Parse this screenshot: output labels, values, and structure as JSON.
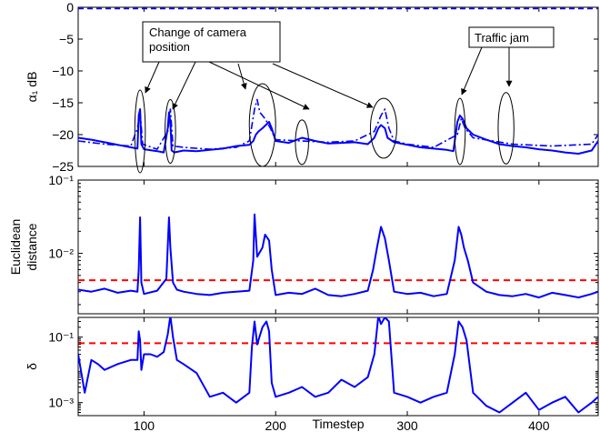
{
  "chart_data": [
    {
      "type": "line",
      "xlim": [
        50,
        445
      ],
      "ylim": [
        -25,
        0
      ],
      "yticks": [
        0,
        -5,
        -10,
        -15,
        -20,
        -25
      ],
      "ytick_labels": [
        "0",
        "−5",
        "−10",
        "−15",
        "−20",
        "−25"
      ],
      "ylabel": "α₁ dB",
      "series": [
        {
          "style": "solid",
          "color": "#0000ff",
          "x": [
            50,
            60,
            70,
            80,
            90,
            95,
            96,
            97,
            98,
            100,
            110,
            115,
            118,
            119,
            120,
            121,
            123,
            130,
            140,
            150,
            160,
            170,
            180,
            183,
            185,
            187,
            190,
            195,
            197,
            200,
            210,
            220,
            230,
            240,
            250,
            260,
            270,
            275,
            278,
            280,
            283,
            285,
            290,
            300,
            310,
            320,
            330,
            335,
            338,
            340,
            342,
            345,
            350,
            360,
            370,
            380,
            390,
            400,
            410,
            420,
            430,
            440,
            445
          ],
          "y": [
            -20.5,
            -20.8,
            -21.2,
            -21.6,
            -22.0,
            -22.2,
            -17.0,
            -16.0,
            -21.5,
            -22.3,
            -22.6,
            -22.8,
            -19.0,
            -16.5,
            -18.0,
            -22.5,
            -22.8,
            -22.5,
            -22.6,
            -22.4,
            -22.2,
            -21.8,
            -21.6,
            -21.0,
            -20.0,
            -19.5,
            -19.0,
            -18.0,
            -19.0,
            -21.0,
            -21.3,
            -20.5,
            -21.0,
            -21.4,
            -21.3,
            -21.2,
            -21.5,
            -20.5,
            -19.0,
            -18.5,
            -19.0,
            -20.5,
            -21.2,
            -21.6,
            -22.0,
            -22.2,
            -22.4,
            -22.6,
            -18.0,
            -17.0,
            -17.5,
            -19.0,
            -20.0,
            -20.8,
            -21.5,
            -21.8,
            -22.0,
            -22.3,
            -22.5,
            -22.8,
            -23.0,
            -22.5,
            -21.0
          ]
        },
        {
          "style": "dashdot",
          "color": "#0000ff",
          "x": [
            50,
            70,
            90,
            95,
            97,
            99,
            110,
            118,
            120,
            122,
            130,
            150,
            170,
            180,
            184,
            186,
            188,
            192,
            196,
            200,
            220,
            240,
            260,
            275,
            280,
            283,
            286,
            290,
            300,
            320,
            338,
            341,
            344,
            350,
            380,
            410,
            440,
            445
          ],
          "y": [
            -21.0,
            -21.5,
            -21.8,
            -19.0,
            -16.5,
            -21.5,
            -22.3,
            -19.5,
            -16.0,
            -21.8,
            -22.0,
            -22.3,
            -22.0,
            -21.0,
            -16.0,
            -14.5,
            -16.5,
            -17.5,
            -19.0,
            -20.8,
            -21.0,
            -21.2,
            -21.0,
            -19.5,
            -17.0,
            -16.0,
            -19.0,
            -21.0,
            -21.5,
            -22.0,
            -20.0,
            -17.5,
            -19.0,
            -20.5,
            -21.5,
            -21.8,
            -21.5,
            -20.0
          ]
        },
        {
          "style": "dashed",
          "color": "#0000ff",
          "x": [
            50,
            445
          ],
          "y": [
            -0.2,
            -0.2
          ]
        }
      ],
      "annotations": {
        "labels": [
          {
            "lines": [
              "Change of camera",
              "position"
            ]
          },
          {
            "lines": [
              "Traffic jam"
            ]
          }
        ],
        "ellipses": [
          {
            "cx": 97,
            "cy": -19.5,
            "rx": 4,
            "ry": 6.5
          },
          {
            "cx": 120,
            "cy": -19.5,
            "rx": 4,
            "ry": 5
          },
          {
            "cx": 190,
            "cy": -18.5,
            "rx": 10,
            "ry": 6.5
          },
          {
            "cx": 220,
            "cy": -21.2,
            "rx": 5,
            "ry": 3.5
          },
          {
            "cx": 282,
            "cy": -19.0,
            "rx": 10,
            "ry": 4.7
          },
          {
            "cx": 340,
            "cy": -19.5,
            "rx": 4,
            "ry": 5.2
          },
          {
            "cx": 375,
            "cy": -19.0,
            "rx": 6,
            "ry": 5.6
          }
        ]
      }
    },
    {
      "type": "line",
      "xlim": [
        50,
        445
      ],
      "yscale": "log",
      "ylim": [
        0.0015,
        0.1
      ],
      "yticks": [
        0.1,
        0.01
      ],
      "ytick_labels": [
        "10⁻¹",
        "10⁻²"
      ],
      "ylabel": [
        "Euclidean",
        "distance"
      ],
      "threshold": 0.0043,
      "series": [
        {
          "style": "solid",
          "color": "#0000ff",
          "x": [
            50,
            60,
            70,
            80,
            90,
            95,
            96,
            97,
            98,
            100,
            110,
            117,
            119,
            120,
            122,
            125,
            130,
            140,
            150,
            160,
            170,
            180,
            183,
            184,
            186,
            190,
            192,
            195,
            197,
            200,
            210,
            220,
            230,
            240,
            250,
            260,
            270,
            274,
            277,
            280,
            283,
            286,
            290,
            300,
            310,
            320,
            330,
            336,
            339,
            341,
            343,
            346,
            350,
            360,
            370,
            380,
            390,
            400,
            410,
            420,
            430,
            440,
            445
          ],
          "y": [
            0.0032,
            0.003,
            0.0033,
            0.0029,
            0.0031,
            0.003,
            0.006,
            0.031,
            0.004,
            0.0028,
            0.0031,
            0.0045,
            0.031,
            0.012,
            0.004,
            0.0032,
            0.003,
            0.0028,
            0.0027,
            0.0029,
            0.003,
            0.0031,
            0.008,
            0.034,
            0.009,
            0.012,
            0.018,
            0.015,
            0.006,
            0.0027,
            0.0029,
            0.0028,
            0.0033,
            0.0027,
            0.0026,
            0.0028,
            0.0031,
            0.006,
            0.012,
            0.023,
            0.016,
            0.008,
            0.003,
            0.0028,
            0.0029,
            0.0026,
            0.0028,
            0.008,
            0.023,
            0.018,
            0.012,
            0.008,
            0.004,
            0.003,
            0.0027,
            0.0026,
            0.0028,
            0.0025,
            0.0029,
            0.0027,
            0.0025,
            0.0028,
            0.003
          ]
        }
      ]
    },
    {
      "type": "line",
      "xlim": [
        50,
        445
      ],
      "yscale": "log",
      "ylim": [
        0.0004,
        0.4
      ],
      "yticks": [
        0.1,
        0.001
      ],
      "ytick_labels": [
        "10⁻¹",
        "10⁻³"
      ],
      "xticks": [
        100,
        200,
        300,
        400
      ],
      "ylabel": "δ",
      "xlabel": "Timestep",
      "threshold": 0.065,
      "series": [
        {
          "style": "solid",
          "color": "#0000ff",
          "x": [
            50,
            55,
            60,
            65,
            70,
            80,
            90,
            95,
            96,
            97,
            98,
            100,
            105,
            110,
            115,
            118,
            120,
            122,
            125,
            130,
            140,
            150,
            160,
            170,
            180,
            182,
            184,
            186,
            190,
            193,
            195,
            197,
            200,
            210,
            220,
            230,
            240,
            250,
            260,
            270,
            275,
            278,
            280,
            283,
            286,
            290,
            300,
            310,
            320,
            330,
            336,
            339,
            342,
            345,
            350,
            360,
            370,
            380,
            390,
            400,
            410,
            420,
            430,
            440,
            445
          ],
          "y": [
            0.03,
            0.002,
            0.02,
            0.015,
            0.01,
            0.015,
            0.02,
            0.02,
            0.15,
            0.08,
            0.01,
            0.03,
            0.03,
            0.025,
            0.035,
            0.12,
            0.45,
            0.1,
            0.02,
            0.015,
            0.008,
            0.0015,
            0.002,
            0.001,
            0.002,
            0.05,
            0.3,
            0.06,
            0.2,
            0.3,
            0.15,
            0.004,
            0.0015,
            0.002,
            0.003,
            0.0015,
            0.002,
            0.005,
            0.003,
            0.006,
            0.03,
            0.45,
            0.25,
            0.4,
            0.3,
            0.002,
            0.0015,
            0.001,
            0.0015,
            0.002,
            0.03,
            0.3,
            0.2,
            0.08,
            0.002,
            0.0008,
            0.0005,
            0.001,
            0.002,
            0.0006,
            0.001,
            0.0015,
            0.0005,
            0.001,
            0.0015
          ]
        }
      ]
    }
  ]
}
